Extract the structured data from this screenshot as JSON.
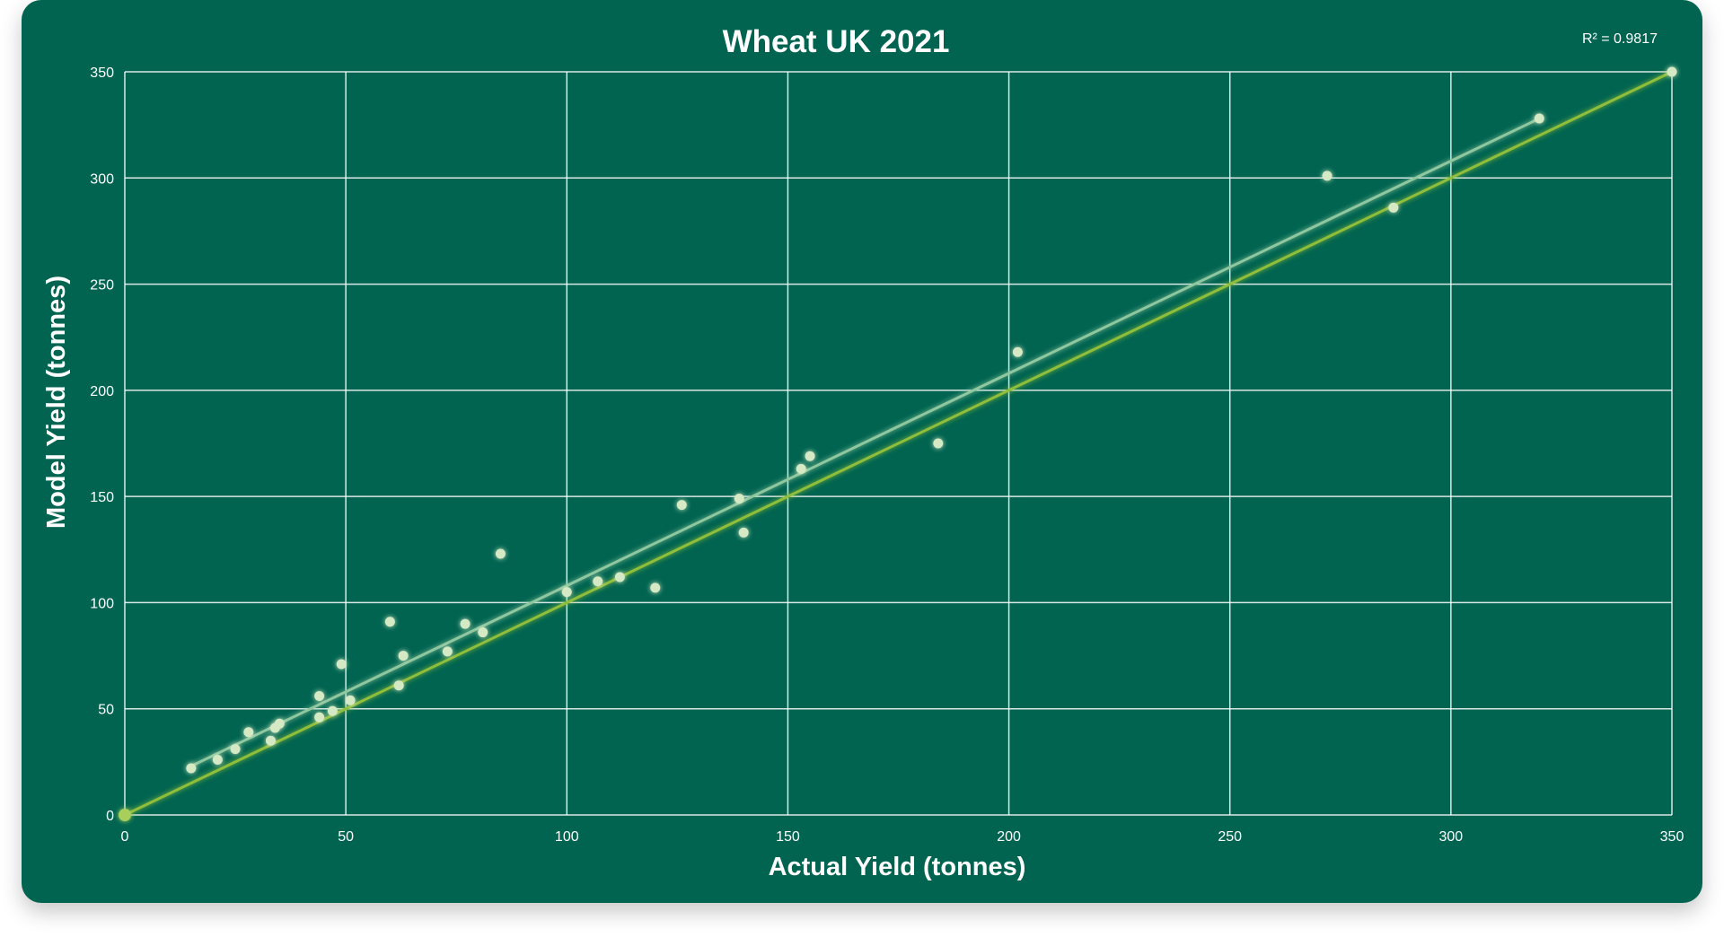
{
  "chart_data": {
    "type": "scatter",
    "title": "Wheat UK 2021",
    "annotation": "R² = 0.9817",
    "xlabel": "Actual Yield (tonnes)",
    "ylabel": "Model Yield (tonnes)",
    "xlim": [
      0,
      350
    ],
    "ylim": [
      0,
      350
    ],
    "xticks": [
      0,
      50,
      100,
      150,
      200,
      250,
      300,
      350
    ],
    "yticks": [
      0,
      50,
      100,
      150,
      200,
      250,
      300,
      350
    ],
    "grid": true,
    "series": [
      {
        "type": "scatter",
        "color": "#d4e9c4",
        "points": [
          [
            0,
            0
          ],
          [
            15,
            22
          ],
          [
            21,
            26
          ],
          [
            25,
            31
          ],
          [
            28,
            39
          ],
          [
            33,
            35
          ],
          [
            34,
            41
          ],
          [
            35,
            43
          ],
          [
            44,
            56
          ],
          [
            44,
            46
          ],
          [
            47,
            49
          ],
          [
            49,
            71
          ],
          [
            51,
            54
          ],
          [
            60,
            91
          ],
          [
            62,
            61
          ],
          [
            63,
            75
          ],
          [
            73,
            77
          ],
          [
            77,
            90
          ],
          [
            81,
            86
          ],
          [
            85,
            123
          ],
          [
            100,
            105
          ],
          [
            107,
            110
          ],
          [
            112,
            112
          ],
          [
            120,
            107
          ],
          [
            126,
            146
          ],
          [
            139,
            149
          ],
          [
            140,
            133
          ],
          [
            153,
            163
          ],
          [
            155,
            169
          ],
          [
            184,
            175
          ],
          [
            202,
            218
          ],
          [
            272,
            301
          ],
          [
            287,
            286
          ],
          [
            320,
            328
          ],
          [
            350,
            350
          ]
        ]
      },
      {
        "type": "line",
        "color": "#8fc79f",
        "x": [
          15,
          320
        ],
        "values": [
          23,
          328
        ]
      },
      {
        "type": "line",
        "color": "#8fbe3a",
        "x": [
          0,
          350
        ],
        "values": [
          0,
          350
        ]
      }
    ]
  }
}
